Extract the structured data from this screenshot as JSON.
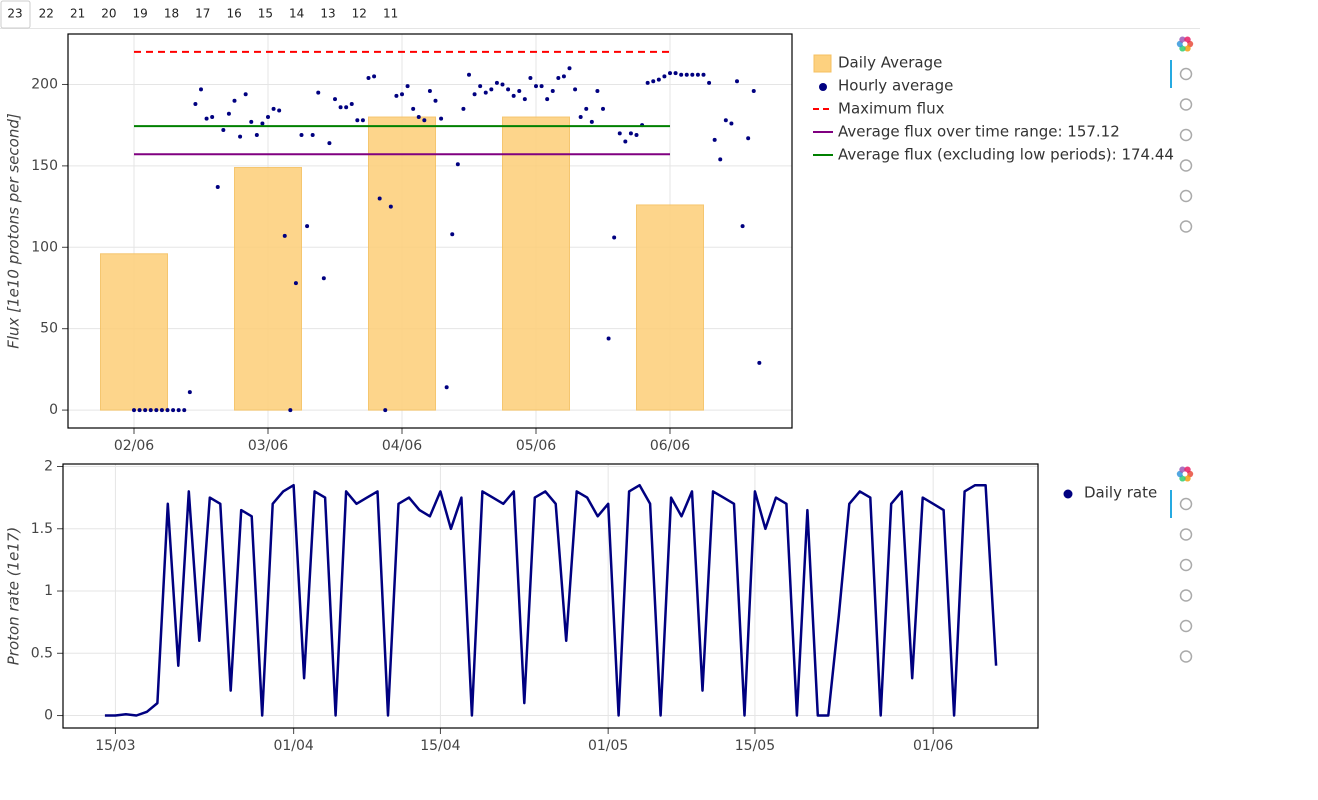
{
  "tabs": [
    "23",
    "22",
    "21",
    "20",
    "19",
    "18",
    "17",
    "16",
    "15",
    "14",
    "13",
    "12",
    "11"
  ],
  "chart_data": [
    {
      "type": "bar",
      "y_label": "Flux [1e10 protons per second]",
      "categories": [
        "02/06",
        "03/06",
        "04/06",
        "05/06",
        "06/06"
      ],
      "ylim": [
        -11,
        231
      ],
      "yticks": [
        0,
        50,
        100,
        150,
        200
      ],
      "grid": true,
      "series": [
        {
          "name": "Daily Average",
          "type": "bar",
          "color": "#fdd17f",
          "values": [
            96,
            149,
            180,
            180,
            126
          ]
        },
        {
          "name": "Hourly average",
          "type": "scatter",
          "color": "#000080",
          "values": [
            0,
            0,
            0,
            0,
            0,
            0,
            0,
            0,
            0,
            0,
            11,
            188,
            197,
            179,
            180,
            137,
            172,
            182,
            190,
            168,
            194,
            177,
            169,
            176,
            180,
            185,
            184,
            107,
            0,
            78,
            169,
            113,
            169,
            195,
            81,
            164,
            191,
            186,
            186,
            188,
            178,
            178,
            204,
            205,
            130,
            0,
            125,
            193,
            194,
            199,
            185,
            180,
            178,
            196,
            190,
            179,
            14,
            108,
            151,
            185,
            206,
            194,
            199,
            195,
            197,
            201,
            200,
            197,
            193,
            196,
            191,
            204,
            199,
            199,
            191,
            196,
            204,
            205,
            210,
            197,
            180,
            185,
            177,
            196,
            185,
            44,
            106,
            170,
            165,
            170,
            169,
            175,
            201,
            202,
            203,
            205,
            207,
            207,
            206,
            206,
            206,
            206,
            206,
            201,
            166,
            154,
            178,
            176,
            202,
            113,
            167,
            196,
            29
          ]
        },
        {
          "name": "Maximum flux",
          "type": "hline",
          "color": "#ff0000",
          "dash": true,
          "value": 220
        },
        {
          "name": "Average flux over time range: 157.12",
          "type": "hline",
          "color": "#800080",
          "dash": false,
          "value": 157.12
        },
        {
          "name": "Average flux (excluding low periods): 174.44",
          "type": "hline",
          "color": "#008000",
          "dash": false,
          "value": 174.44
        }
      ]
    },
    {
      "type": "line",
      "y_label": "Proton rate (1e17)",
      "xlim": [
        "10/03",
        "11/06"
      ],
      "xticks": [
        "15/03",
        "01/04",
        "15/04",
        "01/05",
        "15/05",
        "01/06"
      ],
      "ylim": [
        -0.1,
        2.02
      ],
      "yticks": [
        0,
        0.5,
        1,
        1.5,
        2
      ],
      "grid": true,
      "x": [
        "14/03",
        "15/03",
        "16/03",
        "17/03",
        "18/03",
        "19/03",
        "20/03",
        "21/03",
        "22/03",
        "23/03",
        "24/03",
        "25/03",
        "26/03",
        "27/03",
        "28/03",
        "29/03",
        "30/03",
        "31/03",
        "01/04",
        "02/04",
        "03/04",
        "04/04",
        "05/04",
        "06/04",
        "07/04",
        "08/04",
        "09/04",
        "10/04",
        "11/04",
        "12/04",
        "13/04",
        "14/04",
        "15/04",
        "16/04",
        "17/04",
        "18/04",
        "19/04",
        "20/04",
        "21/04",
        "22/04",
        "23/04",
        "24/04",
        "25/04",
        "26/04",
        "27/04",
        "28/04",
        "29/04",
        "30/04",
        "01/05",
        "02/05",
        "03/05",
        "04/05",
        "05/05",
        "06/05",
        "07/05",
        "08/05",
        "09/05",
        "10/05",
        "11/05",
        "12/05",
        "13/05",
        "14/05",
        "15/05",
        "16/05",
        "17/05",
        "18/05",
        "19/05",
        "20/05",
        "21/05",
        "22/05",
        "23/05",
        "24/05",
        "25/05",
        "26/05",
        "27/05",
        "28/05",
        "29/05",
        "30/05",
        "31/05",
        "01/06",
        "02/06",
        "03/06",
        "04/06",
        "05/06",
        "06/06",
        "07/06"
      ],
      "series": [
        {
          "name": "Daily rate",
          "color": "#000080",
          "values": [
            0,
            0,
            0.01,
            0,
            0.03,
            0.1,
            1.7,
            0.4,
            1.8,
            0.6,
            1.75,
            1.7,
            0.2,
            1.65,
            1.6,
            0,
            1.7,
            1.8,
            1.85,
            0.3,
            1.8,
            1.75,
            0,
            1.8,
            1.7,
            1.75,
            1.8,
            0,
            1.7,
            1.75,
            1.65,
            1.6,
            1.8,
            1.5,
            1.75,
            0,
            1.8,
            1.75,
            1.7,
            1.8,
            0.1,
            1.75,
            1.8,
            1.7,
            0.6,
            1.8,
            1.75,
            1.6,
            1.7,
            0,
            1.8,
            1.85,
            1.7,
            0,
            1.75,
            1.6,
            1.8,
            0.2,
            1.8,
            1.75,
            1.7,
            0,
            1.8,
            1.5,
            1.75,
            1.7,
            0,
            1.65,
            0,
            0,
            0.8,
            1.7,
            1.8,
            1.75,
            0,
            1.7,
            1.8,
            0.3,
            1.75,
            1.7,
            1.65,
            0,
            1.8,
            1.85,
            1.85,
            0.4
          ]
        }
      ]
    }
  ]
}
